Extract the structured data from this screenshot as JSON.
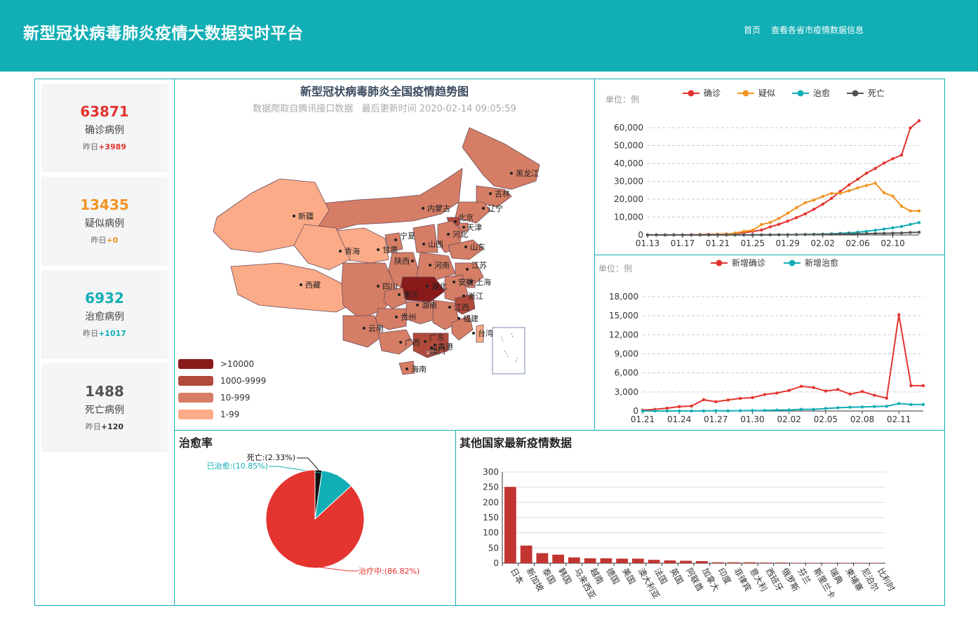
{
  "header": {
    "title": "新型冠状病毒肺炎疫情大数据实时平台",
    "nav": [
      "首页",
      "查看各省市疫情数据信息"
    ]
  },
  "stats": [
    {
      "value": "63871",
      "label": "确诊病例",
      "yesterday_prefix": "昨日",
      "yesterday": "+3989",
      "color": "#e3342f"
    },
    {
      "value": "13435",
      "label": "疑似病例",
      "yesterday_prefix": "昨日",
      "yesterday": "+0",
      "color": "#f09421"
    },
    {
      "value": "6932",
      "label": "治愈病例",
      "yesterday_prefix": "昨日",
      "yesterday": "+1017",
      "color": "#12aeb5"
    },
    {
      "value": "1488",
      "label": "死亡病例",
      "yesterday_prefix": "昨日",
      "yesterday": "+120",
      "color": "#555555"
    }
  ],
  "map": {
    "title": "新型冠状病毒肺炎全国疫情趋势图",
    "subtitle": "数据爬取自腾讯接口数据   最后更新时间 2020-02-14 09:05:59",
    "legend": [
      {
        "label": ">10000",
        "color": "#8a1a1a"
      },
      {
        "label": "1000-9999",
        "color": "#b24a3c"
      },
      {
        "label": "10-999",
        "color": "#d57e65"
      },
      {
        "label": "1-99",
        "color": "#fbab87"
      }
    ],
    "provinces": [
      "黑龙江",
      "吉林",
      "辽宁",
      "内蒙古",
      "北京",
      "天津",
      "河北",
      "山西",
      "山东",
      "新疆",
      "宁夏",
      "甘肃",
      "青海",
      "陕西",
      "河南",
      "江苏",
      "西藏",
      "四川",
      "湖北",
      "安徽",
      "上海",
      "重庆",
      "浙江",
      "湖南",
      "江西",
      "贵州",
      "云南",
      "福建",
      "台湾",
      "广西",
      "广东",
      "香港",
      "澳门",
      "海南"
    ]
  },
  "chart_data": [
    {
      "type": "line",
      "unit_label": "单位：例",
      "x": [
        "01.13",
        "01.14",
        "01.15",
        "01.16",
        "01.17",
        "01.18",
        "01.19",
        "01.20",
        "01.21",
        "01.22",
        "01.23",
        "01.24",
        "01.25",
        "01.26",
        "01.27",
        "01.28",
        "01.29",
        "01.30",
        "01.31",
        "02.01",
        "02.02",
        "02.03",
        "02.04",
        "02.05",
        "02.06",
        "02.07",
        "02.08",
        "02.09",
        "02.10",
        "02.11",
        "02.12",
        "02.13"
      ],
      "x_tick_labels": [
        "01.13",
        "01.17",
        "01.21",
        "01.25",
        "01.29",
        "02.02",
        "02.06",
        "02.10"
      ],
      "series": [
        {
          "name": "确诊",
          "color": "#e3342f",
          "values": [
            41,
            41,
            41,
            45,
            62,
            121,
            198,
            291,
            440,
            571,
            830,
            1287,
            1975,
            2744,
            4515,
            5974,
            7711,
            9692,
            11791,
            14380,
            17205,
            20438,
            24324,
            28018,
            31161,
            34546,
            37198,
            40171,
            42638,
            44653,
            59804,
            63871
          ]
        },
        {
          "name": "疑似",
          "color": "#f09421",
          "values": [
            0,
            0,
            0,
            0,
            0,
            0,
            0,
            54,
            393,
            393,
            1072,
            1965,
            2684,
            5794,
            6973,
            9239,
            12167,
            15238,
            17988,
            19544,
            21558,
            23214,
            23260,
            24702,
            26359,
            27657,
            28942,
            23589,
            21675,
            16067,
            13435,
            13435
          ]
        },
        {
          "name": "治愈",
          "color": "#12aeb5",
          "values": [
            0,
            0,
            0,
            0,
            0,
            0,
            0,
            0,
            0,
            28,
            34,
            38,
            49,
            51,
            60,
            103,
            124,
            171,
            243,
            328,
            475,
            632,
            892,
            1153,
            1540,
            2050,
            2649,
            3281,
            3996,
            4740,
            5911,
            6932
          ]
        },
        {
          "name": "死亡",
          "color": "#555555",
          "values": [
            1,
            1,
            1,
            2,
            2,
            3,
            4,
            6,
            9,
            17,
            25,
            41,
            56,
            80,
            106,
            132,
            170,
            213,
            259,
            304,
            361,
            425,
            490,
            563,
            636,
            722,
            811,
            908,
            1016,
            1113,
            1367,
            1488
          ]
        }
      ],
      "y_ticks": [
        "0",
        "10,000",
        "20,000",
        "30,000",
        "40,000",
        "50,000",
        "60,000"
      ],
      "ylim": [
        0,
        60000
      ]
    },
    {
      "type": "line",
      "unit_label": "单位：例",
      "x": [
        "01.21",
        "01.22",
        "01.23",
        "01.24",
        "01.25",
        "01.26",
        "01.27",
        "01.28",
        "01.29",
        "01.30",
        "01.31",
        "02.01",
        "02.02",
        "02.03",
        "02.04",
        "02.05",
        "02.06",
        "02.07",
        "02.08",
        "02.09",
        "02.10",
        "02.11",
        "02.12",
        "02.13"
      ],
      "x_tick_labels": [
        "01.21",
        "01.24",
        "01.27",
        "01.30",
        "02.02",
        "02.05",
        "02.08",
        "02.11"
      ],
      "series": [
        {
          "name": "新增确诊",
          "color": "#e3342f",
          "values": [
            131,
            259,
            444,
            688,
            769,
            1771,
            1459,
            1737,
            1982,
            2102,
            2590,
            2829,
            3235,
            3887,
            3694,
            3143,
            3385,
            2652,
            3064,
            2478,
            2015,
            15152,
            3989,
            3989
          ]
        },
        {
          "name": "新增治愈",
          "color": "#12aeb5",
          "values": [
            0,
            6,
            3,
            11,
            2,
            9,
            43,
            21,
            47,
            72,
            85,
            147,
            157,
            262,
            261,
            387,
            510,
            599,
            632,
            697,
            744,
            1171,
            1017,
            1017
          ]
        }
      ],
      "y_ticks": [
        "0",
        "3,000",
        "6,000",
        "9,000",
        "12,000",
        "15,000",
        "18,000"
      ],
      "ylim": [
        0,
        18000
      ]
    },
    {
      "type": "pie",
      "title": "治愈率",
      "slices": [
        {
          "label": "治疗中:(86.82%)",
          "value": 86.82,
          "color": "#e3342f"
        },
        {
          "label": "已治愈:(10.85%)",
          "value": 10.85,
          "color": "#12aeb5"
        },
        {
          "label": "死亡:(2.33%)",
          "value": 2.33,
          "color": "#111111"
        }
      ]
    },
    {
      "type": "bar",
      "title": "其他国家最新疫情数据",
      "categories": [
        "日本",
        "新加坡",
        "泰国",
        "韩国",
        "马来西亚",
        "越南",
        "德国",
        "美国",
        "澳大利亚",
        "法国",
        "英国",
        "阿联酋",
        "加拿大",
        "印度",
        "菲律宾",
        "意大利",
        "西班牙",
        "俄罗斯",
        "芬兰",
        "斯里兰卡",
        "瑞典",
        "柬埔寨",
        "尼泊尔",
        "比利时"
      ],
      "values": [
        251,
        58,
        33,
        28,
        19,
        16,
        16,
        15,
        15,
        11,
        9,
        8,
        7,
        3,
        3,
        3,
        2,
        2,
        1,
        1,
        1,
        1,
        1,
        1
      ],
      "color": "#c23531",
      "y_ticks": [
        "0",
        "50",
        "100",
        "150",
        "200",
        "250",
        "300"
      ],
      "ylim": [
        0,
        300
      ]
    }
  ]
}
